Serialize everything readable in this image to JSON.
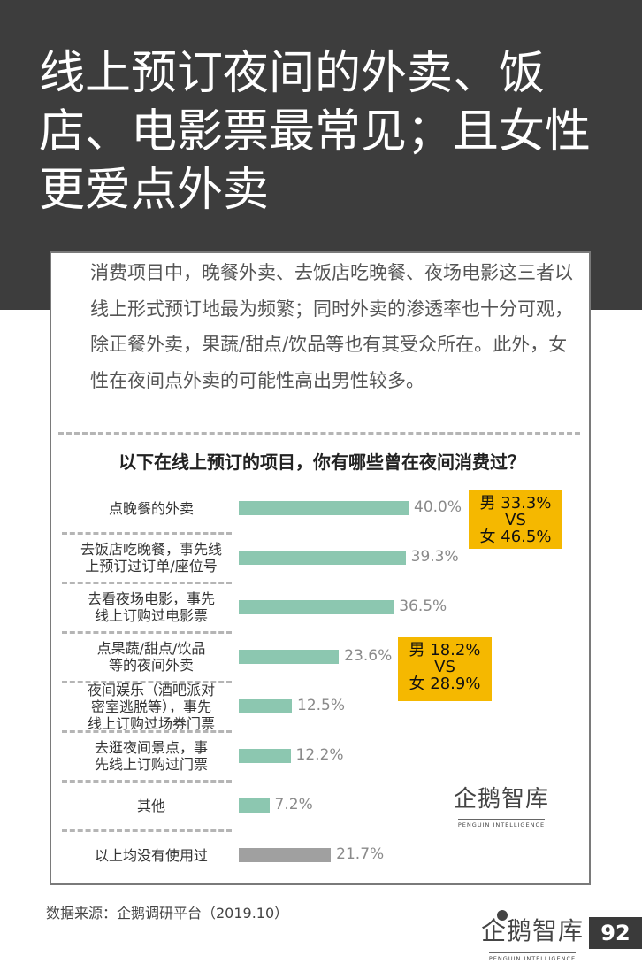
{
  "page": {
    "title": "线上预订夜间的外卖、饭店、电影票最常见；且女性更爱点外卖",
    "intro": "消费项目中，晚餐外卖、去饭店吃晚餐、夜场电影这三者以线上形式预订地最为频繁；同时外卖的渗透率也十分可观，除正餐外卖，果蔬/甜点/饮品等也有其受众所在。此外，女性在夜间点外卖的可能性高出男性较多。",
    "source": "数据来源：企鹅调研平台（2019.10）",
    "page_number": "92",
    "watermark_cn": "企鹅智库",
    "watermark_en": "PENGUIN INTELLIGENCE"
  },
  "colors": {
    "header": "#3d3d3d",
    "bar": "#8cc7b0",
    "bar_none": "#a0a0a0",
    "callout": "#f5b800"
  },
  "chart_data": {
    "type": "bar",
    "orientation": "horizontal",
    "title": "以下在线上预订的项目，你有哪些曾在夜间消费过？",
    "categories": [
      "点晚餐的外卖",
      "去饭店吃晚餐，事先线上预订过订单/座位号",
      "去看夜场电影，事先线上订购过电影票",
      "点果蔬/甜点/饮品等的夜间外卖",
      "夜间娱乐（酒吧派对密室逃脱等），事先线上订购过场券门票",
      "去逛夜间景点，事先线上订购过门票",
      "其他",
      "以上均没有使用过"
    ],
    "label_lines": [
      [
        "点晚餐的外卖"
      ],
      [
        "去饭店吃晚餐，事先线",
        "上预订过订单/座位号"
      ],
      [
        "去看夜场电影，事先",
        "线上订购过电影票"
      ],
      [
        "点果蔬/甜点/饮品",
        "等的夜间外卖"
      ],
      [
        "夜间娱乐（酒吧派对",
        "密室逃脱等），事先",
        "线上订购过场券门票"
      ],
      [
        "去逛夜间景点，事",
        "先线上订购过门票"
      ],
      [
        "其他"
      ],
      [
        "以上均没有使用过"
      ]
    ],
    "values": [
      40.0,
      39.3,
      36.5,
      23.6,
      12.5,
      12.2,
      7.2,
      21.7
    ],
    "value_labels": [
      "40.0%",
      "39.3%",
      "36.5%",
      "23.6%",
      "12.5%",
      "12.2%",
      "7.2%",
      "21.7%"
    ],
    "unit": "%",
    "annotations": [
      {
        "category": "点晚餐的外卖",
        "lines": [
          "男 33.3%",
          "VS",
          "女 46.5%"
        ],
        "male": 33.3,
        "female": 46.5
      },
      {
        "category": "点果蔬/甜点/饮品等的夜间外卖",
        "lines": [
          "男 18.2%",
          "VS",
          "女 28.9%"
        ],
        "male": 18.2,
        "female": 28.9
      }
    ]
  }
}
